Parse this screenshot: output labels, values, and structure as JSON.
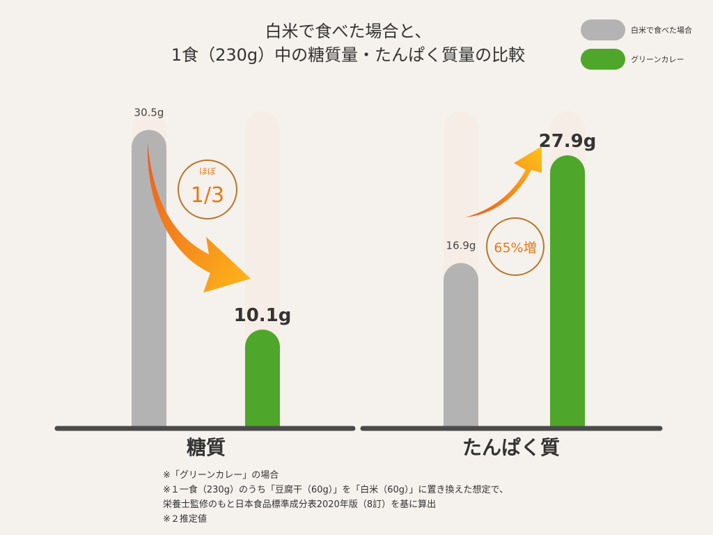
{
  "title": {
    "line1": "白米で食べた場合と、",
    "line2": "1食（230g）中の糖質量・たんぱく質量の比較"
  },
  "legend": [
    {
      "label": "白米で食べた場合",
      "color": "#b3b3b3"
    },
    {
      "label": "グリーンカレー",
      "color": "#4ea72a"
    }
  ],
  "chart_data": {
    "type": "bar",
    "categories": [
      "糖質",
      "たんぱく質"
    ],
    "series": [
      {
        "name": "白米で食べた場合",
        "values": [
          30.5,
          16.9
        ]
      },
      {
        "name": "グリーンカレー",
        "values": [
          10.1,
          27.9
        ]
      }
    ],
    "value_labels": {
      "rice": [
        "30.5g",
        "16.9g"
      ],
      "curry": [
        "10.1g",
        "27.9g"
      ]
    },
    "annotations": {
      "carb_top": "ほぼ",
      "carb_main": "1/3",
      "protein": "65%増"
    },
    "colors": {
      "rice": "#b3b3b3",
      "curry": "#4ea72a",
      "track": "#f6ede6",
      "baseline": "#4a4a4a",
      "annotation": "#e07a1a",
      "circle": "#b5762a"
    },
    "ylim": [
      0,
      33
    ],
    "grid": false,
    "legend_position": "top-right"
  },
  "footnotes": [
    "※「グリーンカレー」の場合",
    "※１一食（230g）のうち「豆腐干（60g）」を「白米（60g）」に置き換えた想定で、",
    "栄養士監修のもと日本食品標準成分表2020年版（8訂）を基に算出",
    "※２推定値"
  ]
}
